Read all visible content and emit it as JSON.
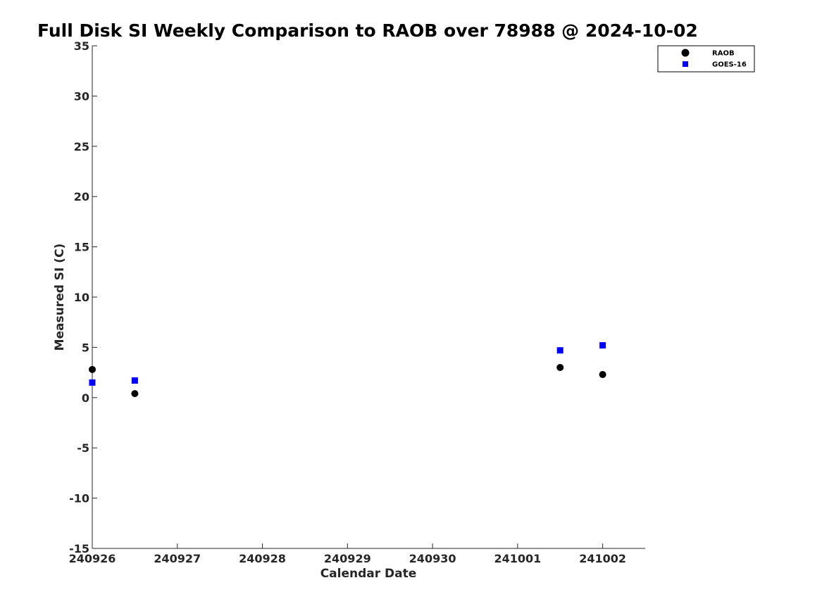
{
  "chart_data": {
    "type": "scatter",
    "title": "Full Disk SI Weekly Comparison to RAOB over 78988 @ 2024-10-02",
    "xlabel": "Calendar Date",
    "ylabel": "Measured SI (C)",
    "xlim": [
      0,
      6.5
    ],
    "ylim": [
      -15,
      35
    ],
    "x_ticks": [
      0,
      1,
      2,
      3,
      4,
      5,
      6
    ],
    "x_tick_labels": [
      "240926",
      "240927",
      "240928",
      "240929",
      "240930",
      "241001",
      "241002"
    ],
    "y_ticks": [
      -15,
      -10,
      -5,
      0,
      5,
      10,
      15,
      20,
      25,
      30,
      35
    ],
    "y_tick_labels": [
      "-15",
      "-10",
      "-5",
      "0",
      "5",
      "10",
      "15",
      "20",
      "25",
      "30",
      "35"
    ],
    "grid": false,
    "legend_position": "top-right",
    "series": [
      {
        "name": "RAOB",
        "marker": "circle",
        "color": "#000000",
        "x": [
          0,
          0.5,
          5.5,
          6
        ],
        "y": [
          2.8,
          0.4,
          3.0,
          2.3
        ]
      },
      {
        "name": "GOES-16",
        "marker": "square",
        "color": "#0000ff",
        "x": [
          0,
          0.5,
          5.5,
          6
        ],
        "y": [
          1.5,
          1.7,
          4.7,
          5.2
        ]
      }
    ]
  }
}
